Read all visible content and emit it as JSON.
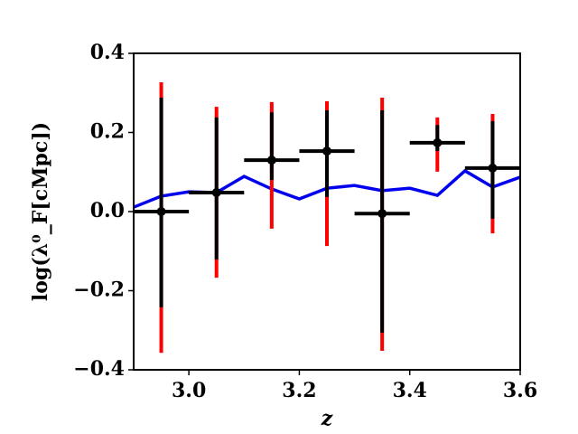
{
  "chart_data": {
    "type": "errorbar",
    "xlabel": "z",
    "ylabel": "log(λ⁰_F[cMpc])",
    "xlim": [
      2.9,
      3.6
    ],
    "ylim": [
      -0.4,
      0.4
    ],
    "xticks": [
      {
        "value": 3.0,
        "label": "3.0"
      },
      3.2,
      3.4,
      3.6
    ],
    "yticks": [
      {
        "value": -0.4,
        "label": "−0.4"
      },
      {
        "value": -0.2,
        "label": "−0.2"
      },
      {
        "value": 0.0,
        "label": "0.0"
      },
      0.2,
      0.4
    ],
    "points": {
      "x": [
        2.95,
        3.05,
        3.15,
        3.25,
        3.35,
        3.45,
        3.55
      ],
      "y": [
        0.0,
        0.048,
        0.13,
        0.153,
        -0.005,
        0.174,
        0.11
      ],
      "xerr": [
        0.05,
        0.05,
        0.05,
        0.05,
        0.05,
        0.05,
        0.05
      ],
      "black_low": [
        -0.242,
        -0.121,
        0.08,
        0.037,
        -0.306,
        0.153,
        -0.018
      ],
      "black_high": [
        0.288,
        0.238,
        0.251,
        0.256,
        0.256,
        0.219,
        0.229
      ],
      "red_low": [
        -0.357,
        -0.167,
        -0.043,
        -0.087,
        -0.352,
        0.101,
        -0.055
      ],
      "red_high": [
        0.327,
        0.265,
        0.277,
        0.279,
        0.288,
        0.238,
        0.247
      ],
      "color": "#000000",
      "outer_color": "#ff0000"
    },
    "line": {
      "color": "#0000ee",
      "x": [
        2.9,
        2.95,
        3.0,
        3.05,
        3.1,
        3.15,
        3.2,
        3.25,
        3.3,
        3.35,
        3.4,
        3.45,
        3.5,
        3.55,
        3.6
      ],
      "values": [
        0.011,
        0.039,
        0.05,
        0.048,
        0.089,
        0.057,
        0.032,
        0.059,
        0.066,
        0.053,
        0.059,
        0.041,
        0.103,
        0.062,
        0.087
      ]
    }
  }
}
